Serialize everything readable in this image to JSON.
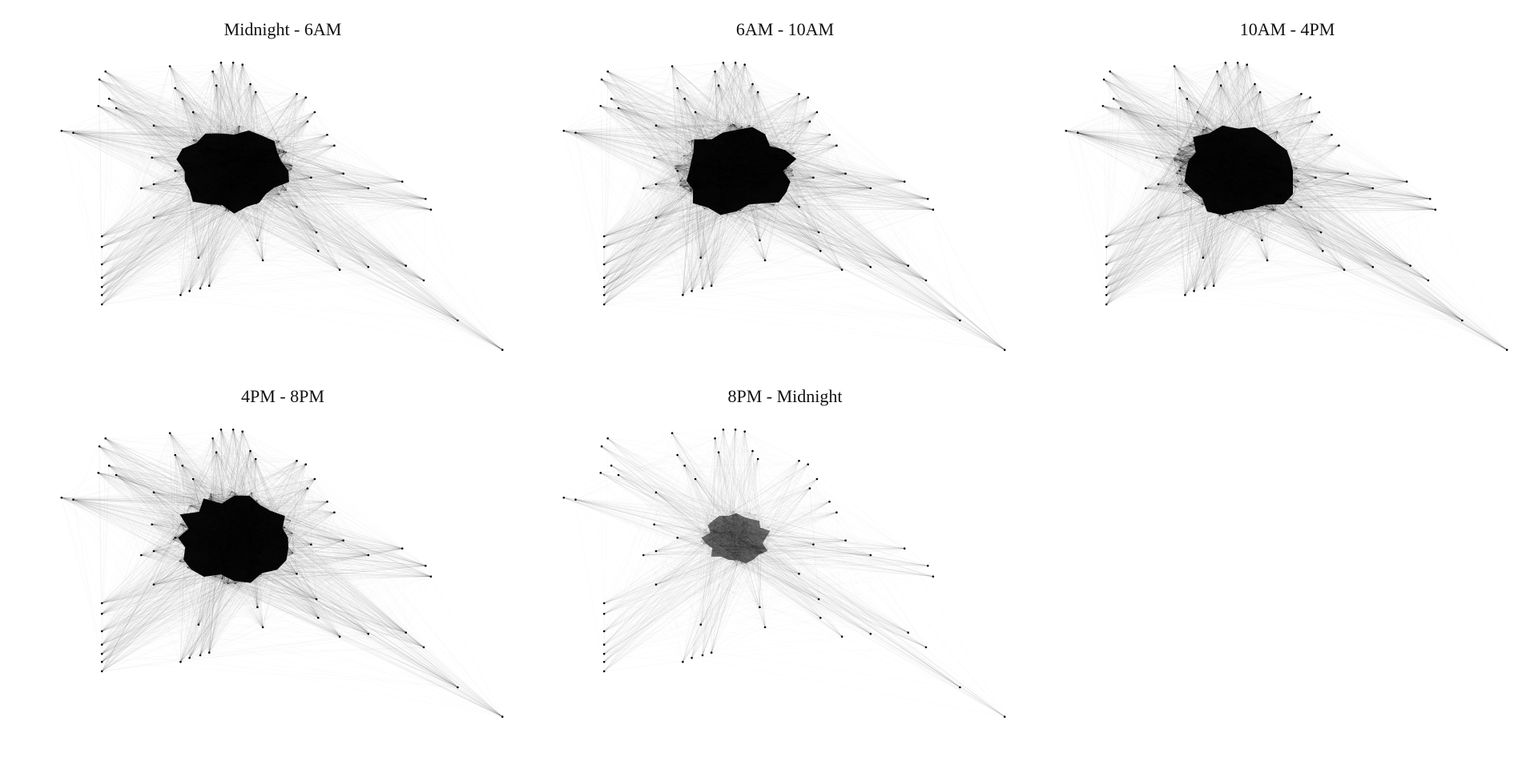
{
  "panels": [
    {
      "title": "Midnight - 6AM"
    },
    {
      "title": "6AM - 10AM"
    },
    {
      "title": "10AM - 4PM"
    },
    {
      "title": "4PM - 8PM"
    },
    {
      "title": "8PM - Midnight"
    }
  ],
  "colors": {
    "edge": "#000000",
    "node": "#000000",
    "background": "#ffffff"
  }
}
